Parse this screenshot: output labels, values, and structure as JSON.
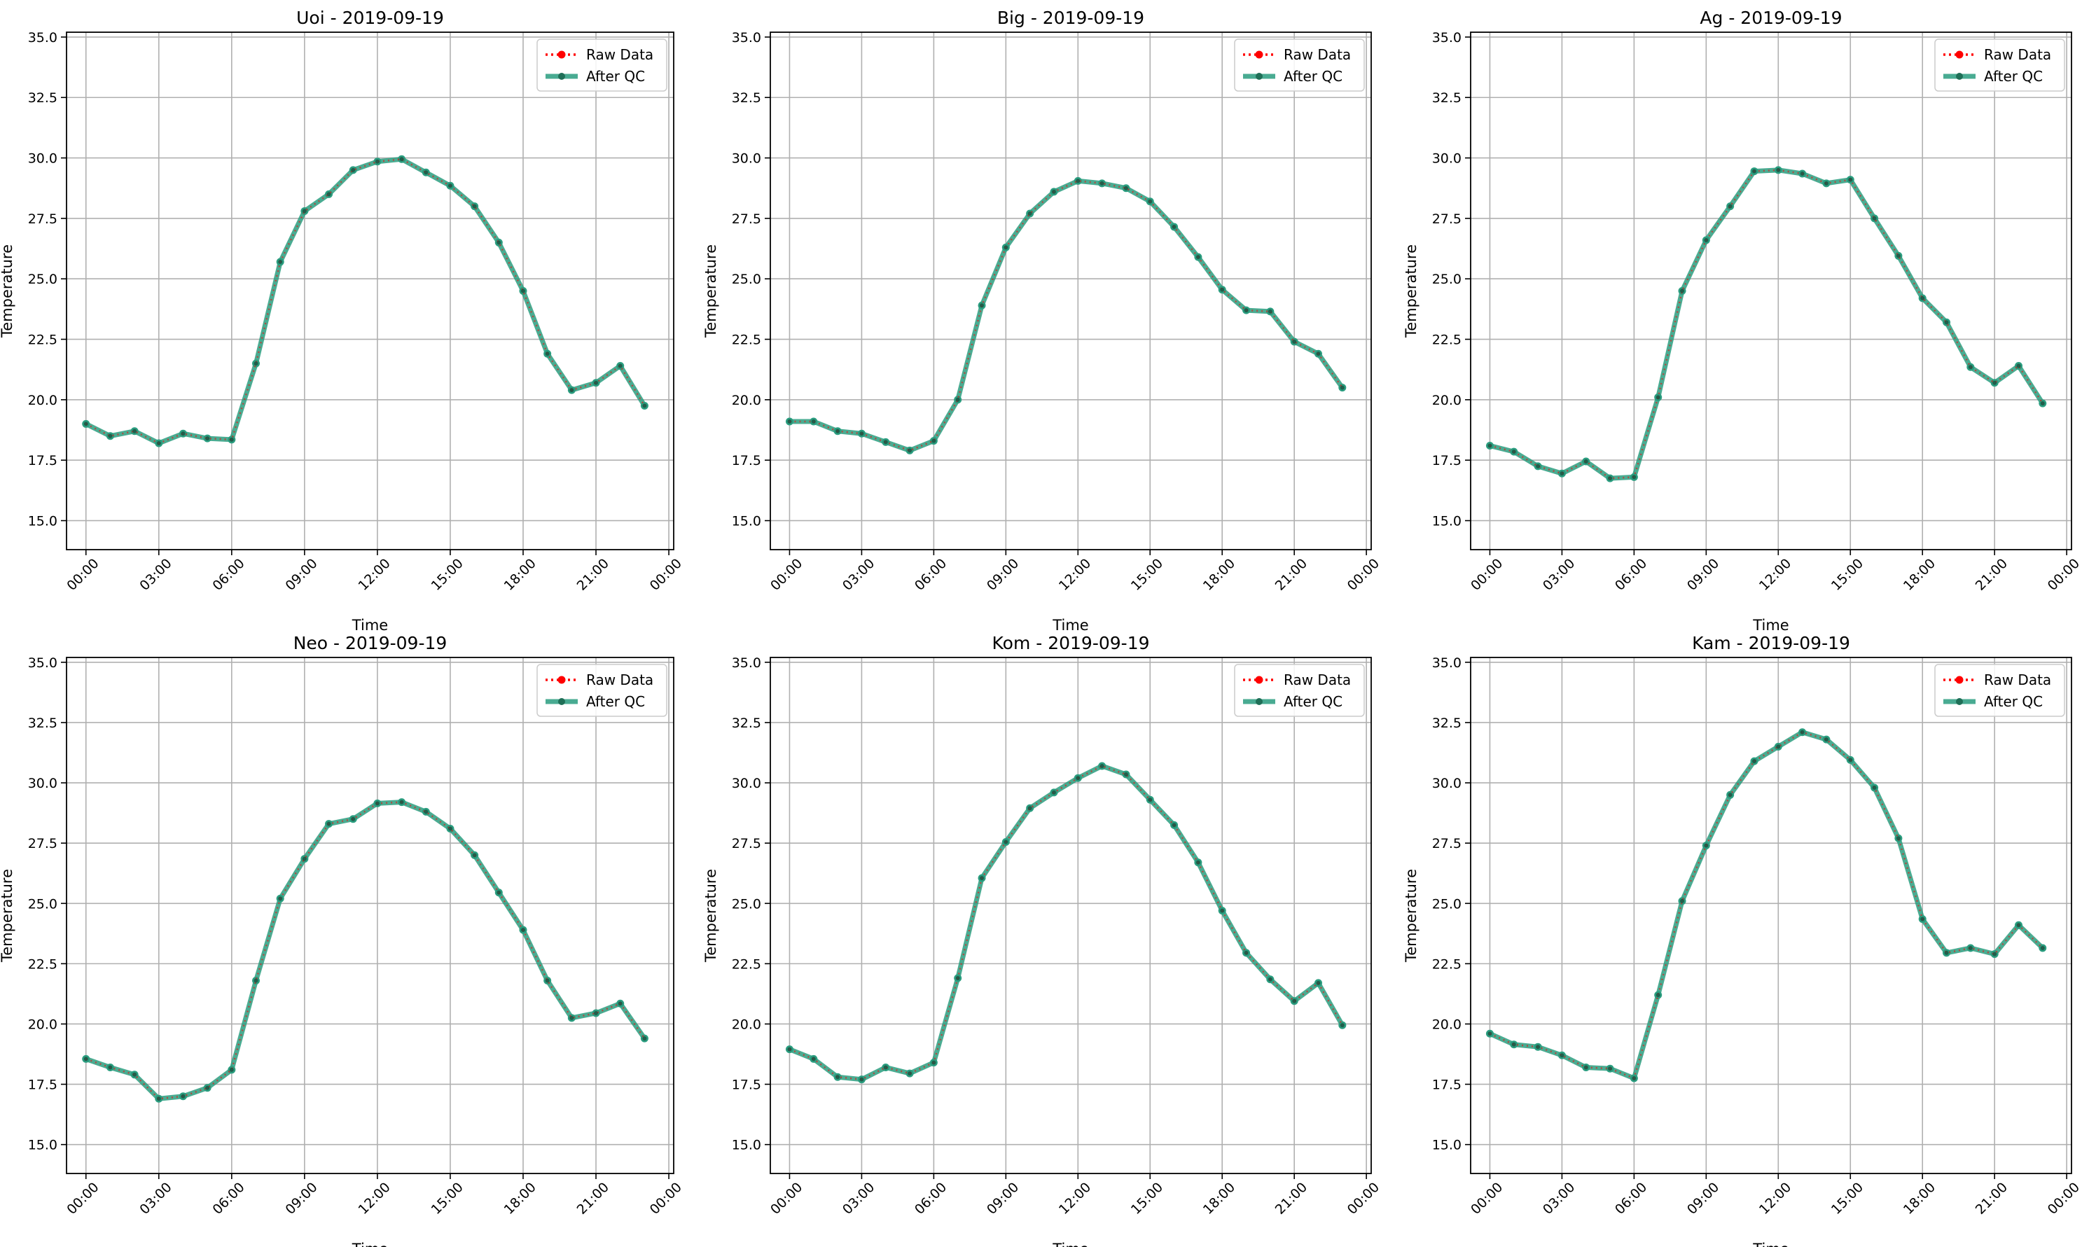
{
  "figure": {
    "legend": {
      "raw": "Raw Data",
      "qc": "After QC",
      "location": "upper right"
    },
    "colors": {
      "raw": "#ff0000",
      "qc": "#2a9d7f",
      "grid": "#b0b0b0"
    }
  },
  "chart_data": [
    {
      "type": "line",
      "title": "Uoi - 2019-09-19",
      "xlabel": "Time",
      "ylabel": "Temperature",
      "x": [
        "00:00",
        "01:00",
        "02:00",
        "03:00",
        "04:00",
        "05:00",
        "06:00",
        "07:00",
        "08:00",
        "09:00",
        "10:00",
        "11:00",
        "12:00",
        "13:00",
        "14:00",
        "15:00",
        "16:00",
        "17:00",
        "18:00",
        "19:00",
        "20:00",
        "21:00",
        "22:00",
        "23:00"
      ],
      "xticks": [
        "00:00",
        "03:00",
        "06:00",
        "09:00",
        "12:00",
        "15:00",
        "18:00",
        "21:00",
        "00:00"
      ],
      "yticks": [
        "15.0",
        "17.5",
        "20.0",
        "22.5",
        "25.0",
        "27.5",
        "30.0",
        "32.5",
        "35.0"
      ],
      "ylim": [
        13.8,
        35.2
      ],
      "grid": true,
      "series": [
        {
          "name": "Raw Data",
          "values": [
            19.0,
            18.5,
            18.7,
            18.2,
            18.6,
            18.4,
            18.35,
            21.5,
            25.7,
            27.8,
            28.5,
            29.5,
            29.85,
            29.95,
            29.4,
            28.85,
            28.0,
            26.5,
            24.5,
            21.9,
            20.4,
            20.7,
            21.4,
            19.75
          ]
        },
        {
          "name": "After QC",
          "values": [
            19.0,
            18.5,
            18.7,
            18.2,
            18.6,
            18.4,
            18.35,
            21.5,
            25.7,
            27.8,
            28.5,
            29.5,
            29.85,
            29.95,
            29.4,
            28.85,
            28.0,
            26.5,
            24.5,
            21.9,
            20.4,
            20.7,
            21.4,
            19.75
          ]
        }
      ]
    },
    {
      "type": "line",
      "title": "Big - 2019-09-19",
      "xlabel": "Time",
      "ylabel": "Temperature",
      "x": [
        "00:00",
        "01:00",
        "02:00",
        "03:00",
        "04:00",
        "05:00",
        "06:00",
        "07:00",
        "08:00",
        "09:00",
        "10:00",
        "11:00",
        "12:00",
        "13:00",
        "14:00",
        "15:00",
        "16:00",
        "17:00",
        "18:00",
        "19:00",
        "20:00",
        "21:00",
        "22:00",
        "23:00"
      ],
      "xticks": [
        "00:00",
        "03:00",
        "06:00",
        "09:00",
        "12:00",
        "15:00",
        "18:00",
        "21:00",
        "00:00"
      ],
      "yticks": [
        "15.0",
        "17.5",
        "20.0",
        "22.5",
        "25.0",
        "27.5",
        "30.0",
        "32.5",
        "35.0"
      ],
      "ylim": [
        13.8,
        35.2
      ],
      "grid": true,
      "series": [
        {
          "name": "Raw Data",
          "values": [
            19.1,
            19.1,
            18.7,
            18.6,
            18.25,
            17.9,
            18.3,
            20.0,
            23.9,
            26.3,
            27.7,
            28.6,
            29.05,
            28.95,
            28.75,
            28.2,
            27.15,
            25.9,
            24.55,
            23.7,
            23.65,
            22.4,
            21.9,
            20.5
          ]
        },
        {
          "name": "After QC",
          "values": [
            19.1,
            19.1,
            18.7,
            18.6,
            18.25,
            17.9,
            18.3,
            20.0,
            23.9,
            26.3,
            27.7,
            28.6,
            29.05,
            28.95,
            28.75,
            28.2,
            27.15,
            25.9,
            24.55,
            23.7,
            23.65,
            22.4,
            21.9,
            20.5
          ]
        }
      ]
    },
    {
      "type": "line",
      "title": "Ag - 2019-09-19",
      "xlabel": "Time",
      "ylabel": "Temperature",
      "x": [
        "00:00",
        "01:00",
        "02:00",
        "03:00",
        "04:00",
        "05:00",
        "06:00",
        "07:00",
        "08:00",
        "09:00",
        "10:00",
        "11:00",
        "12:00",
        "13:00",
        "14:00",
        "15:00",
        "16:00",
        "17:00",
        "18:00",
        "19:00",
        "20:00",
        "21:00",
        "22:00",
        "23:00"
      ],
      "xticks": [
        "00:00",
        "03:00",
        "06:00",
        "09:00",
        "12:00",
        "15:00",
        "18:00",
        "21:00",
        "00:00"
      ],
      "yticks": [
        "15.0",
        "17.5",
        "20.0",
        "22.5",
        "25.0",
        "27.5",
        "30.0",
        "32.5",
        "35.0"
      ],
      "ylim": [
        13.8,
        35.2
      ],
      "grid": true,
      "series": [
        {
          "name": "Raw Data",
          "values": [
            18.1,
            17.85,
            17.25,
            16.95,
            17.45,
            16.75,
            16.8,
            20.1,
            24.5,
            26.6,
            28.0,
            29.45,
            29.5,
            29.35,
            28.95,
            29.1,
            27.5,
            25.95,
            24.2,
            23.2,
            21.35,
            20.7,
            21.4,
            19.85
          ]
        },
        {
          "name": "After QC",
          "values": [
            18.1,
            17.85,
            17.25,
            16.95,
            17.45,
            16.75,
            16.8,
            20.1,
            24.5,
            26.6,
            28.0,
            29.45,
            29.5,
            29.35,
            28.95,
            29.1,
            27.5,
            25.95,
            24.2,
            23.2,
            21.35,
            20.7,
            21.4,
            19.85
          ]
        }
      ]
    },
    {
      "type": "line",
      "title": "Neo - 2019-09-19",
      "xlabel": "Time",
      "ylabel": "Temperature",
      "x": [
        "00:00",
        "01:00",
        "02:00",
        "03:00",
        "04:00",
        "05:00",
        "06:00",
        "07:00",
        "08:00",
        "09:00",
        "10:00",
        "11:00",
        "12:00",
        "13:00",
        "14:00",
        "15:00",
        "16:00",
        "17:00",
        "18:00",
        "19:00",
        "20:00",
        "21:00",
        "22:00",
        "23:00"
      ],
      "xticks": [
        "00:00",
        "03:00",
        "06:00",
        "09:00",
        "12:00",
        "15:00",
        "18:00",
        "21:00",
        "00:00"
      ],
      "yticks": [
        "15.0",
        "17.5",
        "20.0",
        "22.5",
        "25.0",
        "27.5",
        "30.0",
        "32.5",
        "35.0"
      ],
      "ylim": [
        13.8,
        35.2
      ],
      "grid": true,
      "series": [
        {
          "name": "Raw Data",
          "values": [
            18.55,
            18.2,
            17.9,
            16.9,
            17.0,
            17.35,
            18.1,
            21.8,
            25.2,
            26.85,
            28.3,
            28.5,
            29.15,
            29.2,
            28.8,
            28.1,
            27.0,
            25.45,
            23.9,
            21.8,
            20.25,
            20.45,
            20.85,
            19.4
          ]
        },
        {
          "name": "After QC",
          "values": [
            18.55,
            18.2,
            17.9,
            16.9,
            17.0,
            17.35,
            18.1,
            21.8,
            25.2,
            26.85,
            28.3,
            28.5,
            29.15,
            29.2,
            28.8,
            28.1,
            27.0,
            25.45,
            23.9,
            21.8,
            20.25,
            20.45,
            20.85,
            19.4
          ]
        }
      ]
    },
    {
      "type": "line",
      "title": "Kom - 2019-09-19",
      "xlabel": "Time",
      "ylabel": "Temperature",
      "x": [
        "00:00",
        "01:00",
        "02:00",
        "03:00",
        "04:00",
        "05:00",
        "06:00",
        "07:00",
        "08:00",
        "09:00",
        "10:00",
        "11:00",
        "12:00",
        "13:00",
        "14:00",
        "15:00",
        "16:00",
        "17:00",
        "18:00",
        "19:00",
        "20:00",
        "21:00",
        "22:00",
        "23:00"
      ],
      "xticks": [
        "00:00",
        "03:00",
        "06:00",
        "09:00",
        "12:00",
        "15:00",
        "18:00",
        "21:00",
        "00:00"
      ],
      "yticks": [
        "15.0",
        "17.5",
        "20.0",
        "22.5",
        "25.0",
        "27.5",
        "30.0",
        "32.5",
        "35.0"
      ],
      "ylim": [
        13.8,
        35.2
      ],
      "grid": true,
      "series": [
        {
          "name": "Raw Data",
          "values": [
            18.95,
            18.55,
            17.8,
            17.7,
            18.2,
            17.95,
            18.4,
            21.9,
            26.05,
            27.55,
            28.95,
            29.6,
            30.2,
            30.7,
            30.35,
            29.3,
            28.25,
            26.7,
            24.7,
            22.95,
            21.85,
            20.95,
            21.7,
            19.95
          ]
        },
        {
          "name": "After QC",
          "values": [
            18.95,
            18.55,
            17.8,
            17.7,
            18.2,
            17.95,
            18.4,
            21.9,
            26.05,
            27.55,
            28.95,
            29.6,
            30.2,
            30.7,
            30.35,
            29.3,
            28.25,
            26.7,
            24.7,
            22.95,
            21.85,
            20.95,
            21.7,
            19.95
          ]
        }
      ]
    },
    {
      "type": "line",
      "title": "Kam - 2019-09-19",
      "xlabel": "Time",
      "ylabel": "Temperature",
      "x": [
        "00:00",
        "01:00",
        "02:00",
        "03:00",
        "04:00",
        "05:00",
        "06:00",
        "07:00",
        "08:00",
        "09:00",
        "10:00",
        "11:00",
        "12:00",
        "13:00",
        "14:00",
        "15:00",
        "16:00",
        "17:00",
        "18:00",
        "19:00",
        "20:00",
        "21:00",
        "22:00",
        "23:00"
      ],
      "xticks": [
        "00:00",
        "03:00",
        "06:00",
        "09:00",
        "12:00",
        "15:00",
        "18:00",
        "21:00",
        "00:00"
      ],
      "yticks": [
        "15.0",
        "17.5",
        "20.0",
        "22.5",
        "25.0",
        "27.5",
        "30.0",
        "32.5",
        "35.0"
      ],
      "ylim": [
        13.8,
        35.2
      ],
      "grid": true,
      "series": [
        {
          "name": "Raw Data",
          "values": [
            19.6,
            19.15,
            19.05,
            18.7,
            18.2,
            18.15,
            17.75,
            21.2,
            25.1,
            27.4,
            29.5,
            30.9,
            31.5,
            32.1,
            31.8,
            30.95,
            29.8,
            27.7,
            24.35,
            22.95,
            23.15,
            22.9,
            24.1,
            23.15
          ]
        },
        {
          "name": "After QC",
          "values": [
            19.6,
            19.15,
            19.05,
            18.7,
            18.2,
            18.15,
            17.75,
            21.2,
            25.1,
            27.4,
            29.5,
            30.9,
            31.5,
            32.1,
            31.8,
            30.95,
            29.8,
            27.7,
            24.35,
            22.95,
            23.15,
            22.9,
            24.1,
            23.15
          ]
        }
      ]
    }
  ]
}
